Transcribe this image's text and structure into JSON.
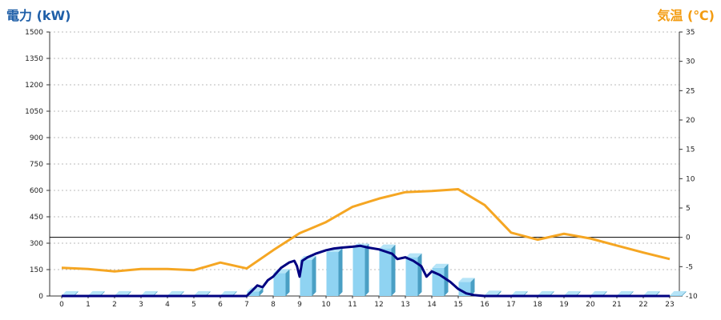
{
  "chart_data": {
    "type": "bar",
    "left_axis_label": "電力 (kW)",
    "right_axis_label": "気温 (℃)",
    "x_ticks": [
      "0",
      "1",
      "2",
      "3",
      "4",
      "5",
      "6",
      "7",
      "8",
      "9",
      "10",
      "11",
      "12",
      "13",
      "14",
      "15",
      "16",
      "17",
      "18",
      "19",
      "20",
      "21",
      "22",
      "23"
    ],
    "y_left": {
      "min": 0,
      "max": 1500,
      "ticks": [
        0,
        150,
        300,
        450,
        600,
        750,
        900,
        1050,
        1200,
        1350,
        1500
      ]
    },
    "y_right": {
      "min": -10,
      "max": 35,
      "ticks": [
        -10,
        -5,
        0,
        5,
        10,
        15,
        20,
        25,
        30,
        35
      ]
    },
    "grid": true,
    "bar_series": {
      "color": "#8fd3f2",
      "values": [
        5,
        5,
        5,
        5,
        5,
        5,
        5,
        25,
        130,
        205,
        250,
        275,
        270,
        220,
        160,
        80,
        8,
        5,
        5,
        5,
        5,
        5,
        5,
        5
      ]
    },
    "power_line": {
      "color": "#000080",
      "x": [
        0,
        1,
        2,
        3,
        4,
        5,
        6,
        6.5,
        7,
        7.2,
        7.4,
        7.6,
        7.8,
        8,
        8.3,
        8.6,
        8.8,
        8.9,
        9,
        9.1,
        9.3,
        9.6,
        10,
        10.3,
        10.6,
        11,
        11.3,
        11.6,
        12,
        12.3,
        12.5,
        12.7,
        13,
        13.3,
        13.6,
        13.8,
        14,
        14.3,
        14.7,
        15,
        15.3,
        15.6,
        16,
        17,
        18,
        19,
        20,
        21,
        22,
        23
      ],
      "y": [
        0,
        0,
        0,
        0,
        0,
        0,
        0,
        0,
        0,
        30,
        60,
        50,
        90,
        110,
        160,
        190,
        200,
        170,
        110,
        200,
        220,
        240,
        260,
        270,
        275,
        280,
        285,
        275,
        265,
        250,
        240,
        210,
        220,
        200,
        170,
        110,
        140,
        120,
        80,
        40,
        15,
        5,
        0,
        0,
        0,
        0,
        0,
        0,
        0,
        0
      ]
    },
    "temperature_line": {
      "color": "#f5a623",
      "x": [
        0,
        1,
        2,
        3,
        4,
        5,
        6,
        7,
        8,
        9,
        10,
        11,
        12,
        13,
        14,
        15,
        16,
        17,
        18,
        19,
        20,
        21,
        22,
        23
      ],
      "y": [
        -5.2,
        -5.4,
        -5.8,
        -5.4,
        -5.4,
        -5.6,
        -4.3,
        -5.3,
        -2.2,
        0.7,
        2.6,
        5.2,
        6.6,
        7.7,
        7.9,
        8.2,
        5.5,
        0.8,
        -0.4,
        0.6,
        -0.2,
        -1.4,
        -2.6,
        -3.7
      ]
    },
    "reference_line": {
      "axis": "right",
      "value": 0,
      "color": "#000000"
    }
  }
}
